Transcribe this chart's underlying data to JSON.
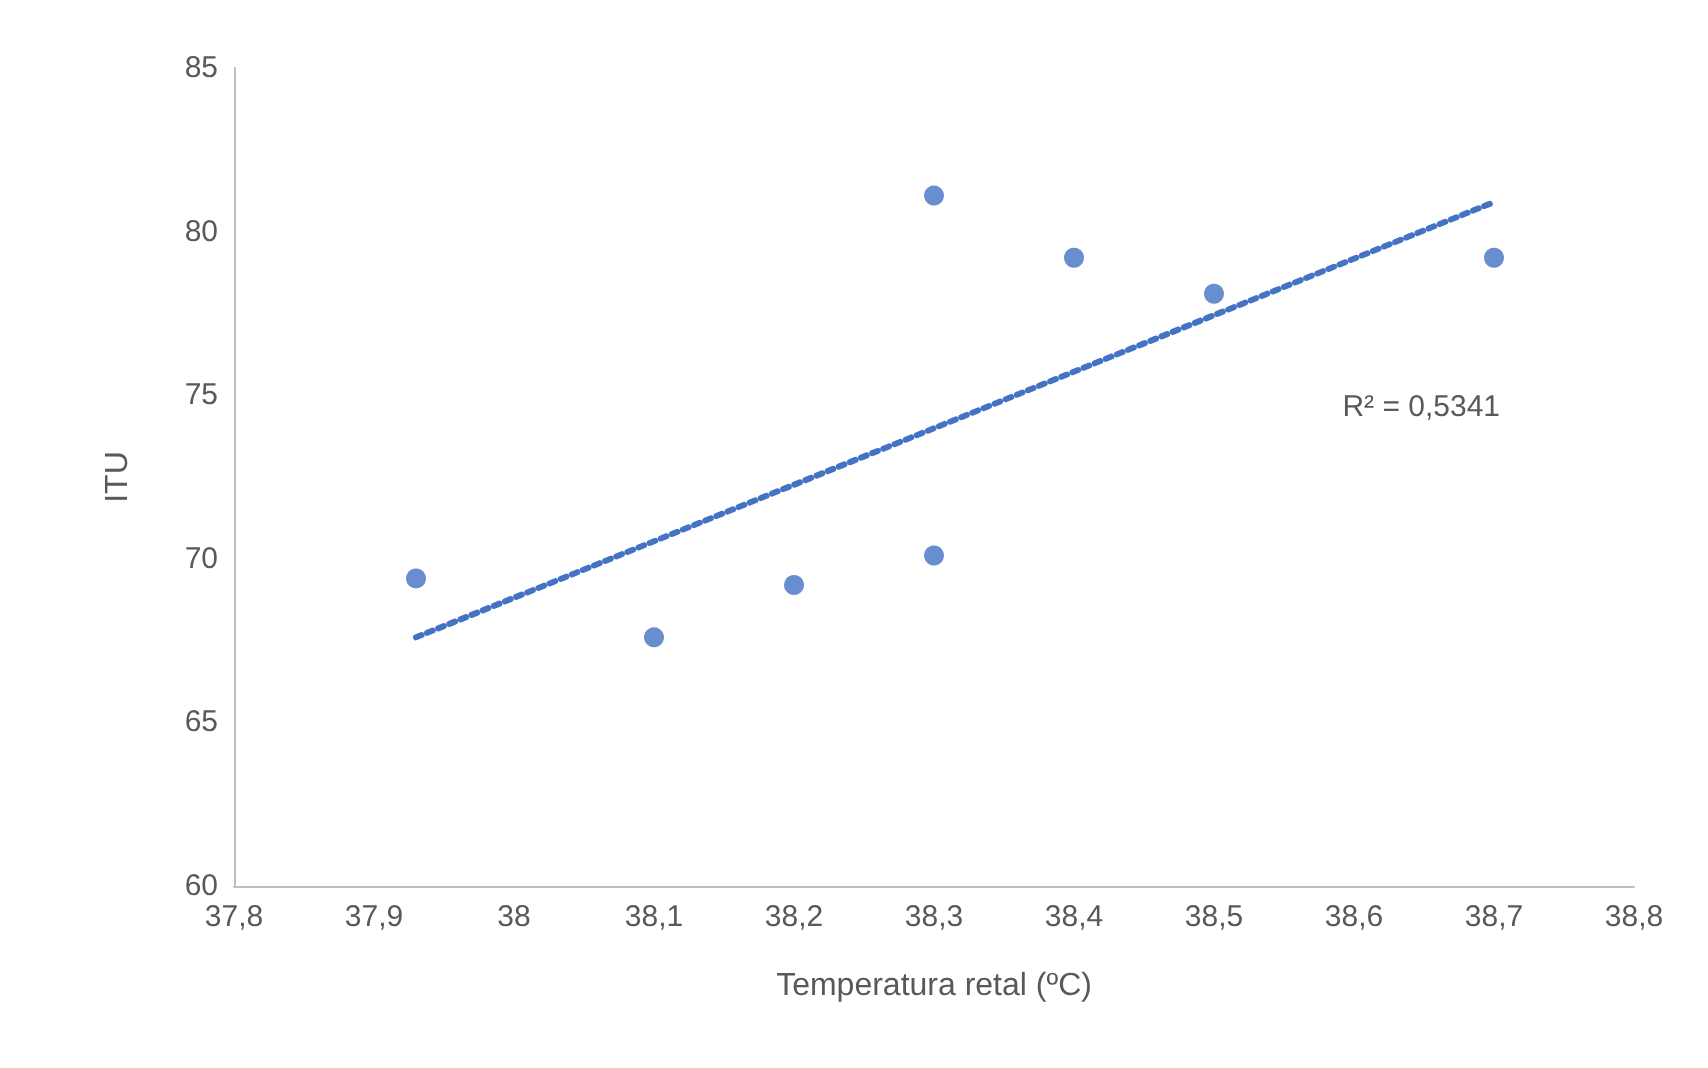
{
  "chart_data": {
    "type": "scatter",
    "xlabel": "Temperatura retal (ºC)",
    "ylabel": "ITU",
    "xlim": [
      37.8,
      38.8
    ],
    "xticks": [
      {
        "value": 37.8,
        "label": "37,8"
      },
      {
        "value": 37.9,
        "label": "37,9"
      },
      {
        "value": 38,
        "label": "38"
      },
      {
        "value": 38.1,
        "label": "38,1"
      },
      {
        "value": 38.2,
        "label": "38,2"
      },
      {
        "value": 38.3,
        "label": "38,3"
      },
      {
        "value": 38.4,
        "label": "38,4"
      },
      {
        "value": 38.5,
        "label": "38,5"
      },
      {
        "value": 38.6,
        "label": "38,6"
      },
      {
        "value": 38.7,
        "label": "38,7"
      },
      {
        "value": 38.8,
        "label": "38,8"
      }
    ],
    "ylim": [
      60,
      85
    ],
    "yticks": [
      60,
      65,
      70,
      75,
      80,
      85
    ],
    "grid": false,
    "marker": "circle",
    "series": [
      {
        "color": "#4472c4",
        "x": [
          37.93,
          38.1,
          38.2,
          38.3,
          38.3,
          38.4,
          38.5,
          38.7
        ],
        "values": [
          69.4,
          67.6,
          69.2,
          81.1,
          70.1,
          79.2,
          78.1,
          79.2
        ]
      },
      {
        "type": "line",
        "color": "#4472c4",
        "line_style": "dotted",
        "marker": "none",
        "x": [
          37.93,
          38.7
        ],
        "values": [
          67.6,
          80.9
        ]
      }
    ],
    "annotations": [
      "R² = 0,5341"
    ]
  }
}
